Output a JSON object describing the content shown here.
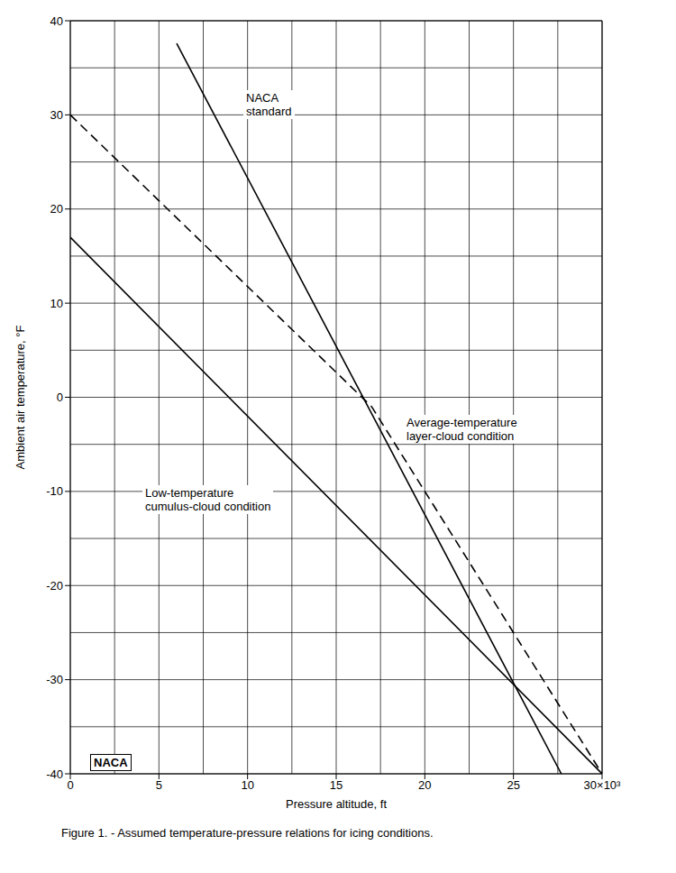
{
  "chart_data": {
    "type": "line",
    "title": "Figure 1. - Assumed temperature-pressure relations for icing conditions.",
    "x_label": "Pressure altitude, ft",
    "y_label": "Ambient air temperature, °F",
    "xlim": [
      0,
      30
    ],
    "ylim": [
      -40,
      40
    ],
    "xticks": [
      0,
      5,
      10,
      15,
      20,
      25,
      {
        "value": 30,
        "label": "30×10³"
      }
    ],
    "yticks": [
      -40,
      -30,
      -20,
      -10,
      0,
      10,
      20,
      30,
      40
    ],
    "grid": true,
    "annotations": [
      "NACA\nstandard",
      "Average-temperature\nlayer-cloud condition",
      "Low-temperature\ncumulus-cloud condition",
      "NACA"
    ],
    "series": [
      {
        "name": "NACA standard",
        "color": "#000000",
        "line_style": "solid",
        "x": [
          6,
          27.7
        ],
        "values": [
          37.6,
          -40
        ]
      },
      {
        "name": "Average-temperature layer-cloud condition",
        "color": "#000000",
        "line_style": "dashed",
        "x": [
          0,
          17,
          30
        ],
        "values": [
          30,
          -1,
          -40
        ]
      },
      {
        "name": "Low-temperature cumulus-cloud condition",
        "color": "#000000",
        "line_style": "solid",
        "x": [
          0,
          30
        ],
        "values": [
          17,
          -40
        ]
      }
    ]
  }
}
